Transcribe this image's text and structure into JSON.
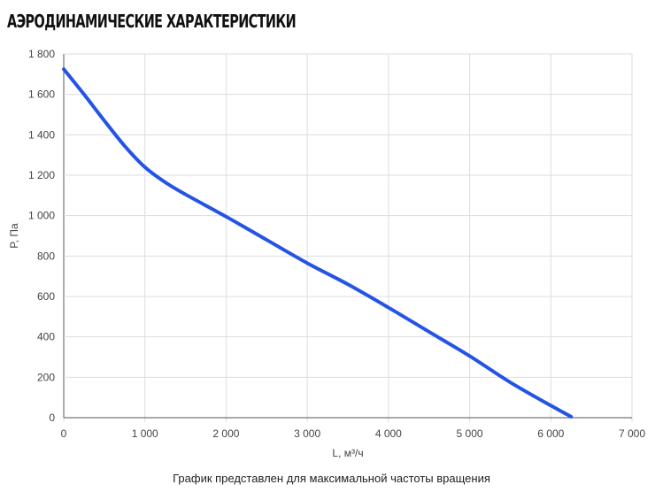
{
  "header": {
    "title": "Аэродинамические характеристики"
  },
  "chart_data": {
    "type": "line",
    "title": "",
    "xlabel": "L, м³/ч",
    "ylabel": "P, Па",
    "xlim": [
      0,
      7000
    ],
    "ylim": [
      0,
      1800
    ],
    "x_ticks": [
      0,
      1000,
      2000,
      3000,
      4000,
      5000,
      6000,
      7000
    ],
    "x_tick_labels": [
      "0",
      "1 000",
      "2 000",
      "3 000",
      "4 000",
      "5 000",
      "6 000",
      "7 000"
    ],
    "y_ticks": [
      0,
      200,
      400,
      600,
      800,
      1000,
      1200,
      1400,
      1600,
      1800
    ],
    "y_tick_labels": [
      "0",
      "200",
      "400",
      "600",
      "800",
      "1 000",
      "1 200",
      "1 400",
      "1 600",
      "1 800"
    ],
    "grid": true,
    "legend": "none",
    "series": [
      {
        "color": "#2454e6",
        "x": [
          0,
          250,
          500,
          750,
          1000,
          1250,
          1500,
          2000,
          2500,
          3000,
          3500,
          4000,
          4500,
          5000,
          5500,
          6000,
          6250
        ],
        "y": [
          1725,
          1600,
          1470,
          1345,
          1240,
          1165,
          1105,
          995,
          880,
          765,
          660,
          545,
          425,
          305,
          175,
          60,
          5
        ]
      }
    ]
  },
  "footer": {
    "caption": "График представлен для максимальной частоты вращения"
  }
}
